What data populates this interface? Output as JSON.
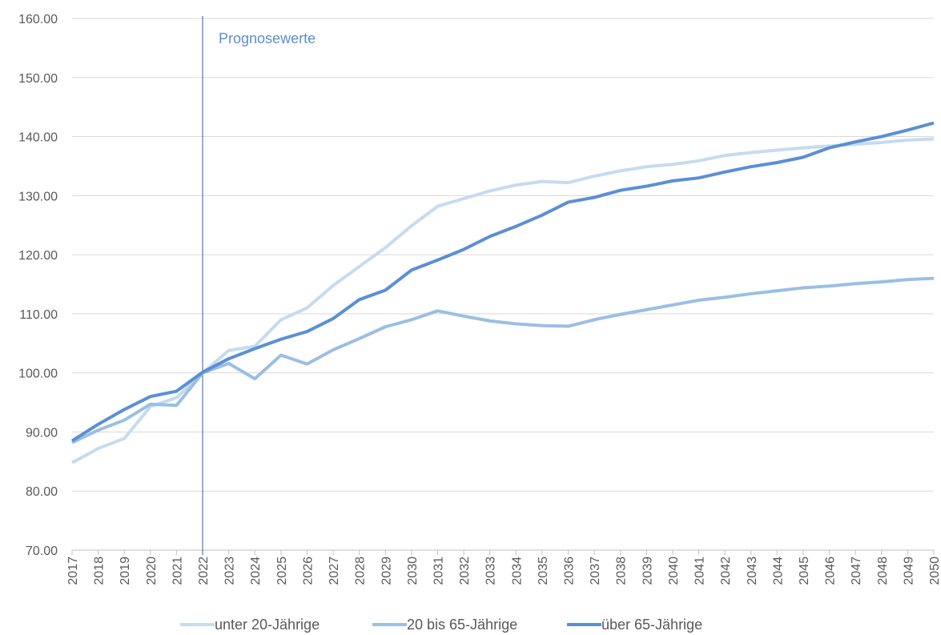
{
  "chart_data": {
    "type": "line",
    "categories": [
      "2017",
      "2018",
      "2019",
      "2020",
      "2021",
      "2022",
      "2023",
      "2024",
      "2025",
      "2026",
      "2027",
      "2028",
      "2029",
      "2030",
      "2031",
      "2032",
      "2033",
      "2034",
      "2035",
      "2036",
      "2037",
      "2038",
      "2039",
      "2040",
      "2041",
      "2042",
      "2043",
      "2044",
      "2045",
      "2046",
      "2047",
      "2048",
      "2049",
      "2050"
    ],
    "series": [
      {
        "name": "unter 20-Jährige",
        "color": "#c6dbf0",
        "values": [
          84.8,
          87.2,
          88.9,
          94.3,
          95.8,
          100,
          103.8,
          104.5,
          109,
          111,
          114.8,
          118,
          121.2,
          124.9,
          128.2,
          129.5,
          130.8,
          131.8,
          132.4,
          132.2,
          133.3,
          134.2,
          134.9,
          135.3,
          135.9,
          136.8,
          137.3,
          137.7,
          138.1,
          138.4,
          138.7,
          139.0,
          139.4,
          139.6
        ]
      },
      {
        "name": "20 bis 65-Jährige",
        "color": "#9bbfe3",
        "values": [
          88.2,
          90.3,
          92.0,
          94.7,
          94.5,
          100,
          101.6,
          99.0,
          103.0,
          101.5,
          103.9,
          105.8,
          107.8,
          109.0,
          110.5,
          109.6,
          108.8,
          108.3,
          108.0,
          107.9,
          109.0,
          109.9,
          110.7,
          111.5,
          112.3,
          112.8,
          113.4,
          113.9,
          114.4,
          114.7,
          115.1,
          115.4,
          115.8,
          116.0
        ]
      },
      {
        "name": "über 65-Jährige",
        "color": "#5b8fd4",
        "values": [
          88.5,
          91.3,
          93.8,
          96.0,
          96.9,
          100.1,
          102.4,
          104.1,
          105.7,
          107.0,
          109.2,
          112.4,
          114.0,
          117.4,
          119.1,
          120.9,
          123.1,
          124.8,
          126.7,
          128.9,
          129.7,
          130.9,
          131.6,
          132.5,
          133.0,
          134.0,
          134.9,
          135.6,
          136.5,
          138.1,
          139.1,
          140.0,
          141.1,
          142.3
        ]
      }
    ],
    "ylim": [
      70,
      160
    ],
    "yticks": [
      {
        "value": 70,
        "label": "70.00"
      },
      {
        "value": 80,
        "label": "80.00"
      },
      {
        "value": 90,
        "label": "90.00"
      },
      {
        "value": 100,
        "label": "100.00"
      },
      {
        "value": 110,
        "label": "110.00"
      },
      {
        "value": 120,
        "label": "120.00"
      },
      {
        "value": 130,
        "label": "130.00"
      },
      {
        "value": 140,
        "label": "140.00"
      },
      {
        "value": 150,
        "label": "150.00"
      },
      {
        "value": 160,
        "label": "160.00"
      }
    ],
    "grid": true,
    "legend": "bottom",
    "annotations": [
      {
        "text": "Prognosewerte",
        "x": "2022",
        "color": "#2f5fb0"
      }
    ]
  }
}
